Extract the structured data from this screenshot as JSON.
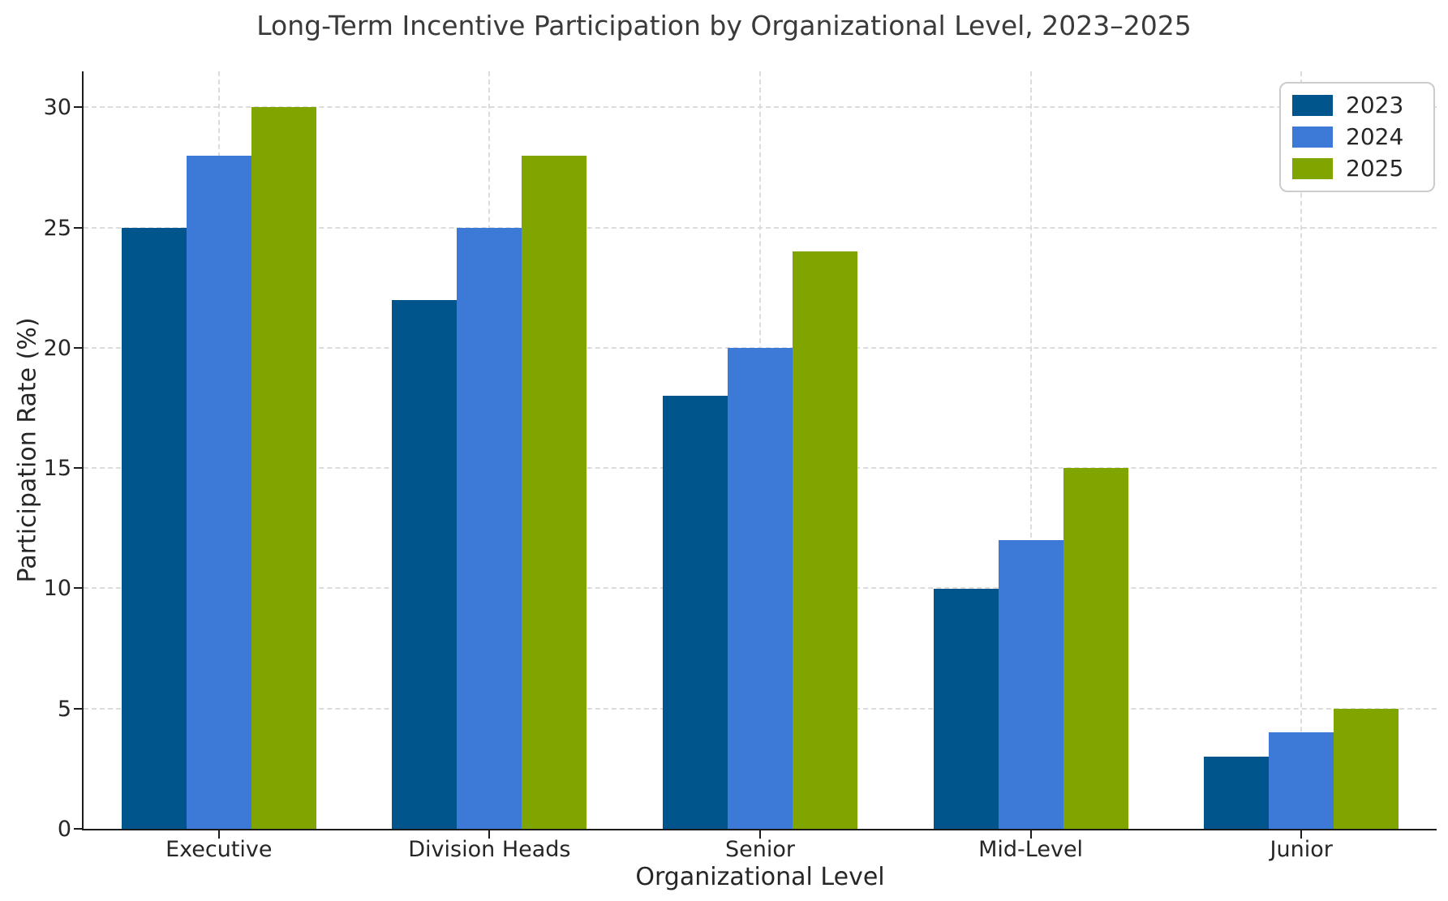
{
  "title": "Long-Term Incentive Participation by Organizational Level, 2023–2025",
  "chart_data": {
    "type": "bar",
    "title": "Long-Term Incentive Participation by Organizational Level, 2023–2025",
    "xlabel": "Organizational Level",
    "ylabel": "Participation Rate (%)",
    "categories": [
      "Executive",
      "Division Heads",
      "Senior",
      "Mid-Level",
      "Junior"
    ],
    "series": [
      {
        "name": "2023",
        "color": "#00568C",
        "values": [
          25,
          22,
          18,
          10,
          3
        ]
      },
      {
        "name": "2024",
        "color": "#3D7AD8",
        "values": [
          28,
          25,
          20,
          12,
          4
        ]
      },
      {
        "name": "2025",
        "color": "#80A400",
        "values": [
          30,
          28,
          24,
          15,
          5
        ]
      }
    ],
    "yticks": [
      0,
      5,
      10,
      15,
      20,
      25,
      30
    ],
    "ylim": [
      0,
      31.5
    ],
    "grid": true,
    "legend_position": "upper right",
    "legend_entries": [
      "2023",
      "2024",
      "2025"
    ]
  },
  "colors": {
    "grid": "#dcdcdc",
    "spine": "#1c1c1c",
    "text": "#262626",
    "title_text": "#3a3a3a",
    "legend_border": "#cccccc",
    "background": "#ffffff"
  }
}
